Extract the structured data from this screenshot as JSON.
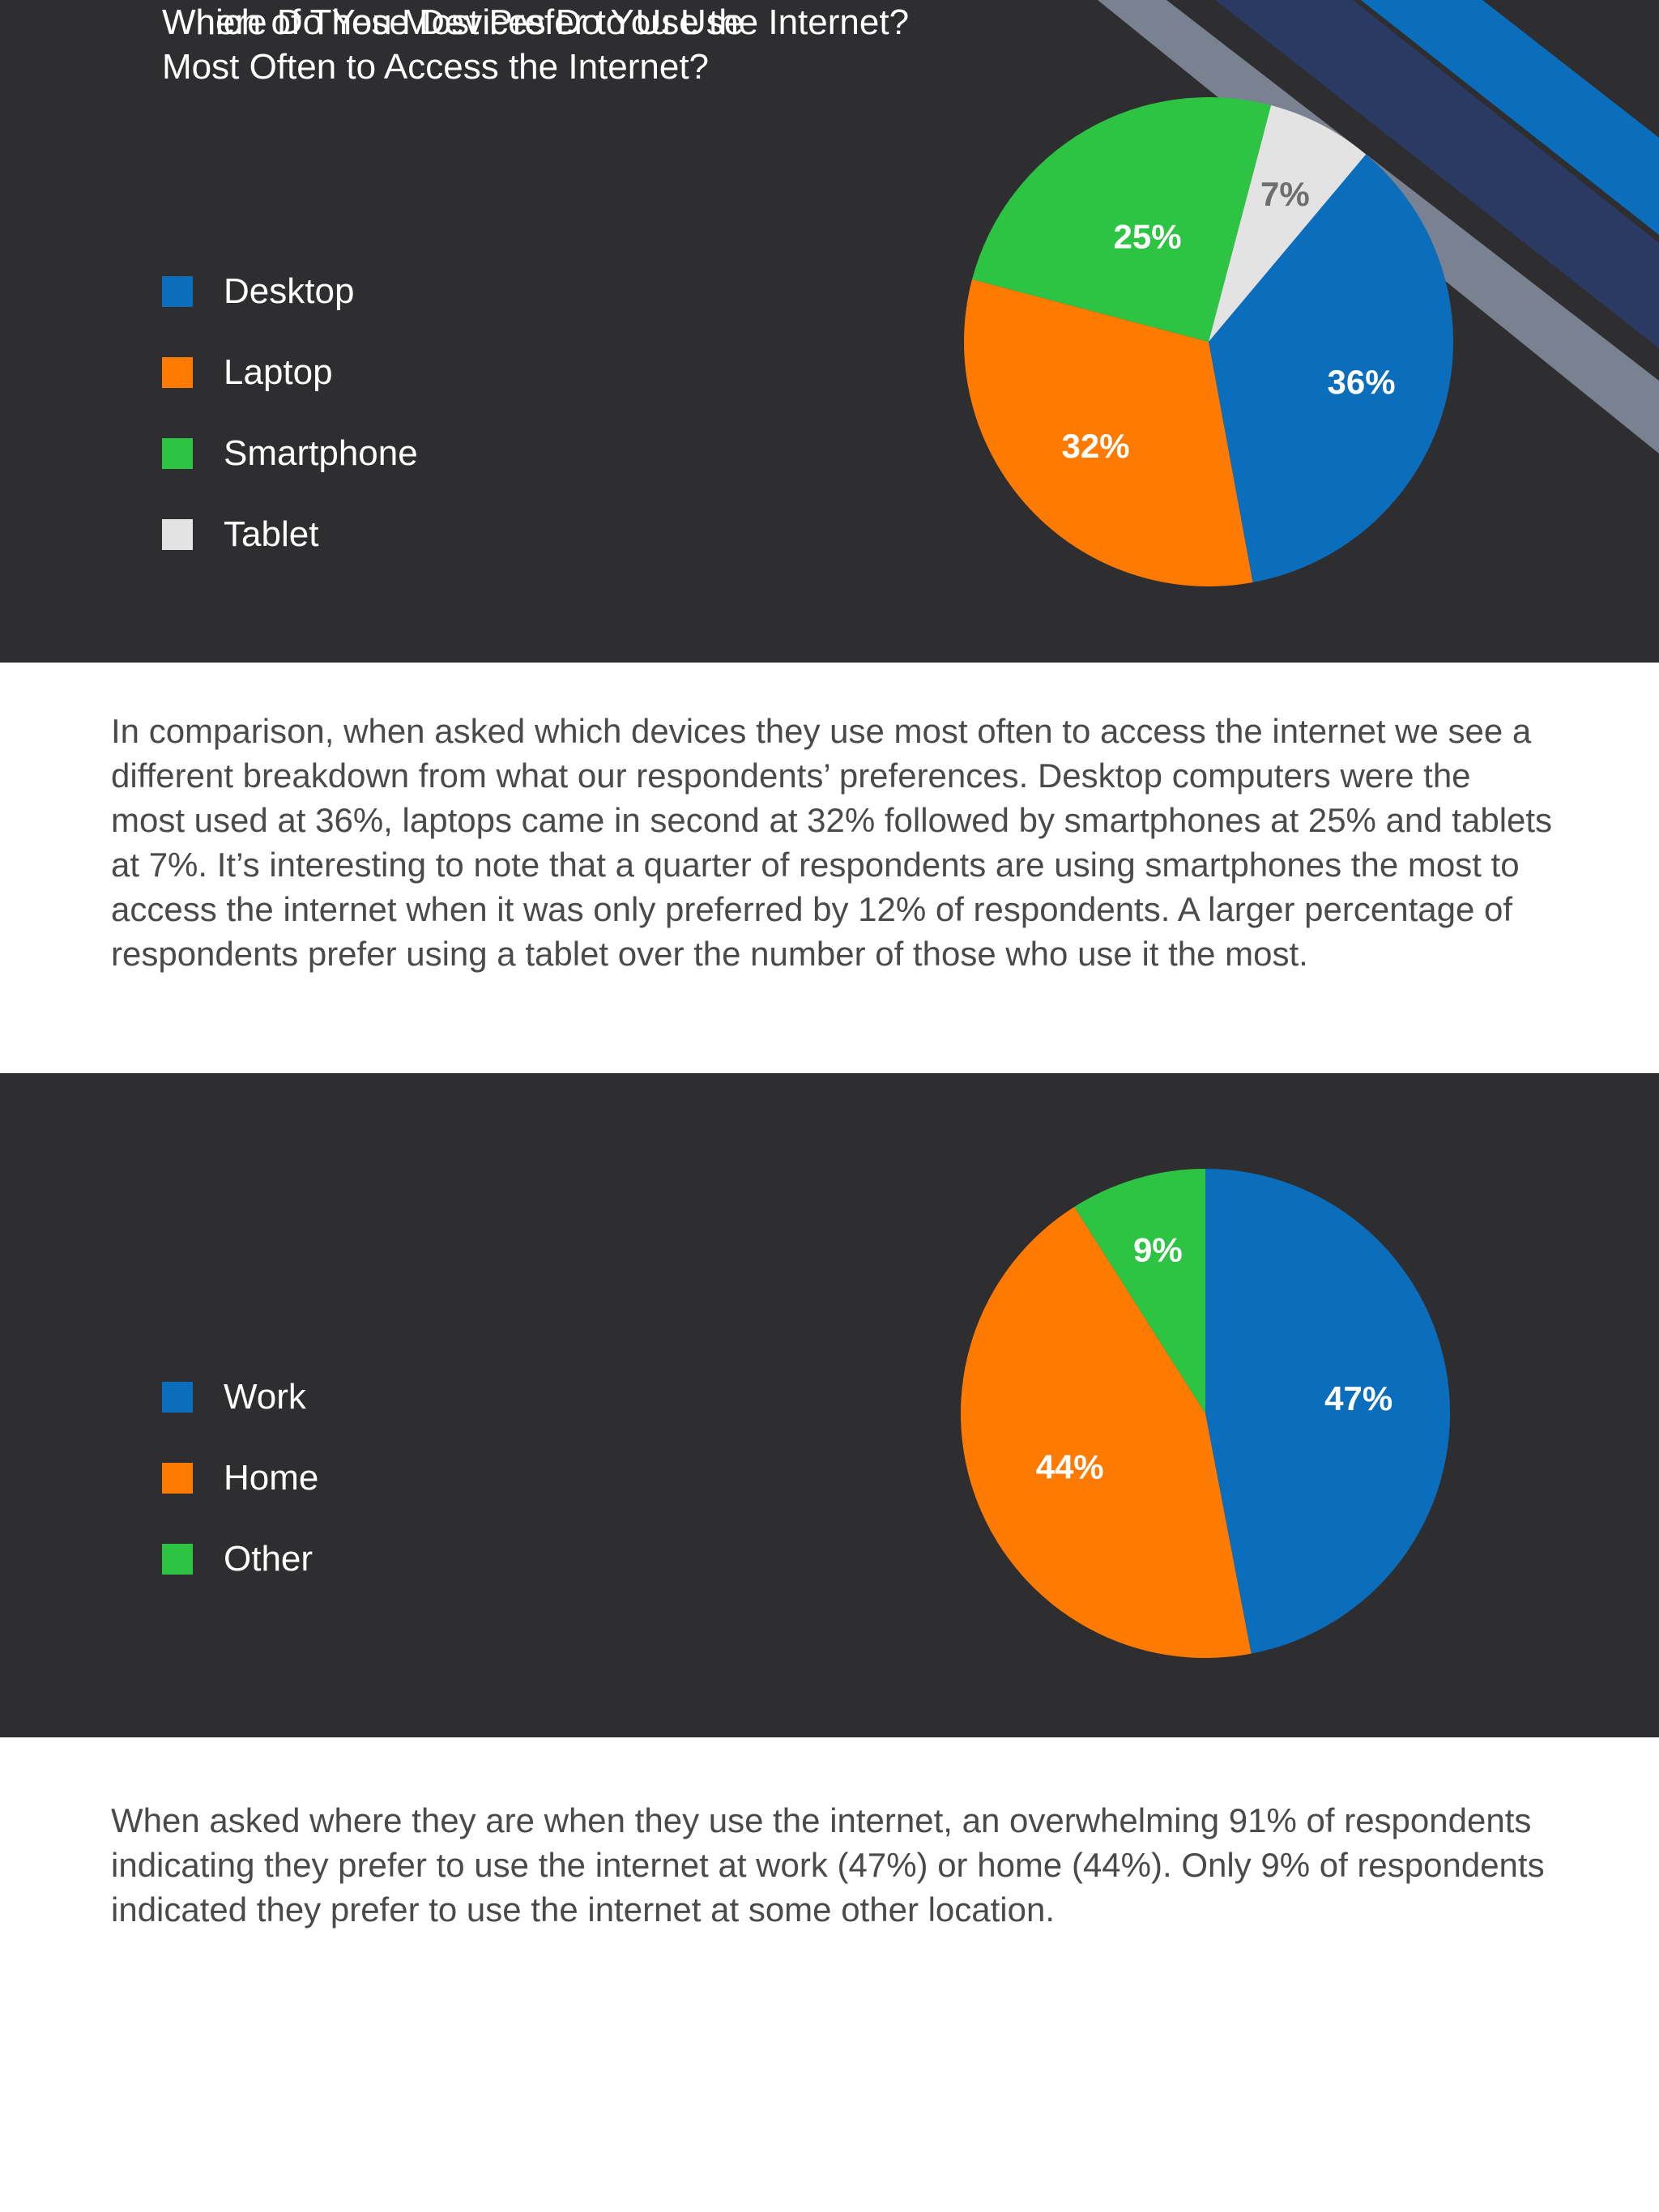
{
  "chart_data": [
    {
      "type": "pie",
      "title": "Which of These Devices Do You Use\nMost Often to Access the Internet?",
      "legend_position": "left",
      "categories": [
        "Desktop",
        "Laptop",
        "Smartphone",
        "Tablet"
      ],
      "values": [
        36,
        32,
        25,
        7
      ],
      "labels": [
        "36%",
        "32%",
        "25%",
        "7%"
      ],
      "colors": [
        "#0a6ebd",
        "#ff7a00",
        "#2dc443",
        "#e3e3e3"
      ],
      "label_colors": [
        "#ffffff",
        "#ffffff",
        "#ffffff",
        "#6e6e6e"
      ]
    },
    {
      "type": "pie",
      "title": "Where Do You Most Prefer to Use the Internet?",
      "legend_position": "left",
      "categories": [
        "Work",
        "Home",
        "Other"
      ],
      "values": [
        47,
        44,
        9
      ],
      "labels": [
        "47%",
        "44%",
        "9%"
      ],
      "colors": [
        "#0a6ebd",
        "#ff7a00",
        "#2dc443"
      ],
      "label_colors": [
        "#ffffff",
        "#ffffff",
        "#ffffff"
      ]
    }
  ],
  "paragraphs": {
    "devices": "In comparison, when asked which devices they use most often to access the internet we see a different breakdown from what our respondents’ preferences. Desktop computers were the most used at 36%, laptops came in second at 32% followed by smartphones at 25% and tablets at 7%. It’s interesting to note that a quarter of respondents are using smartphones the most to access the internet when it was only preferred by 12% of respondents. A larger percentage of respondents prefer using a tablet over the number of those who use it the most.",
    "location": "When asked where they are when they use the internet, an overwhelming 91% of respondents indicating they prefer to use the internet at work (47%) or home (44%). Only 9% of respondents indicated they prefer to use the internet at some other location."
  },
  "colors": {
    "panel_background": "#2e2e30",
    "stripe_gray": "#7a8190",
    "stripe_navy": "#2a3a63",
    "stripe_blue": "#0a6ebd"
  }
}
